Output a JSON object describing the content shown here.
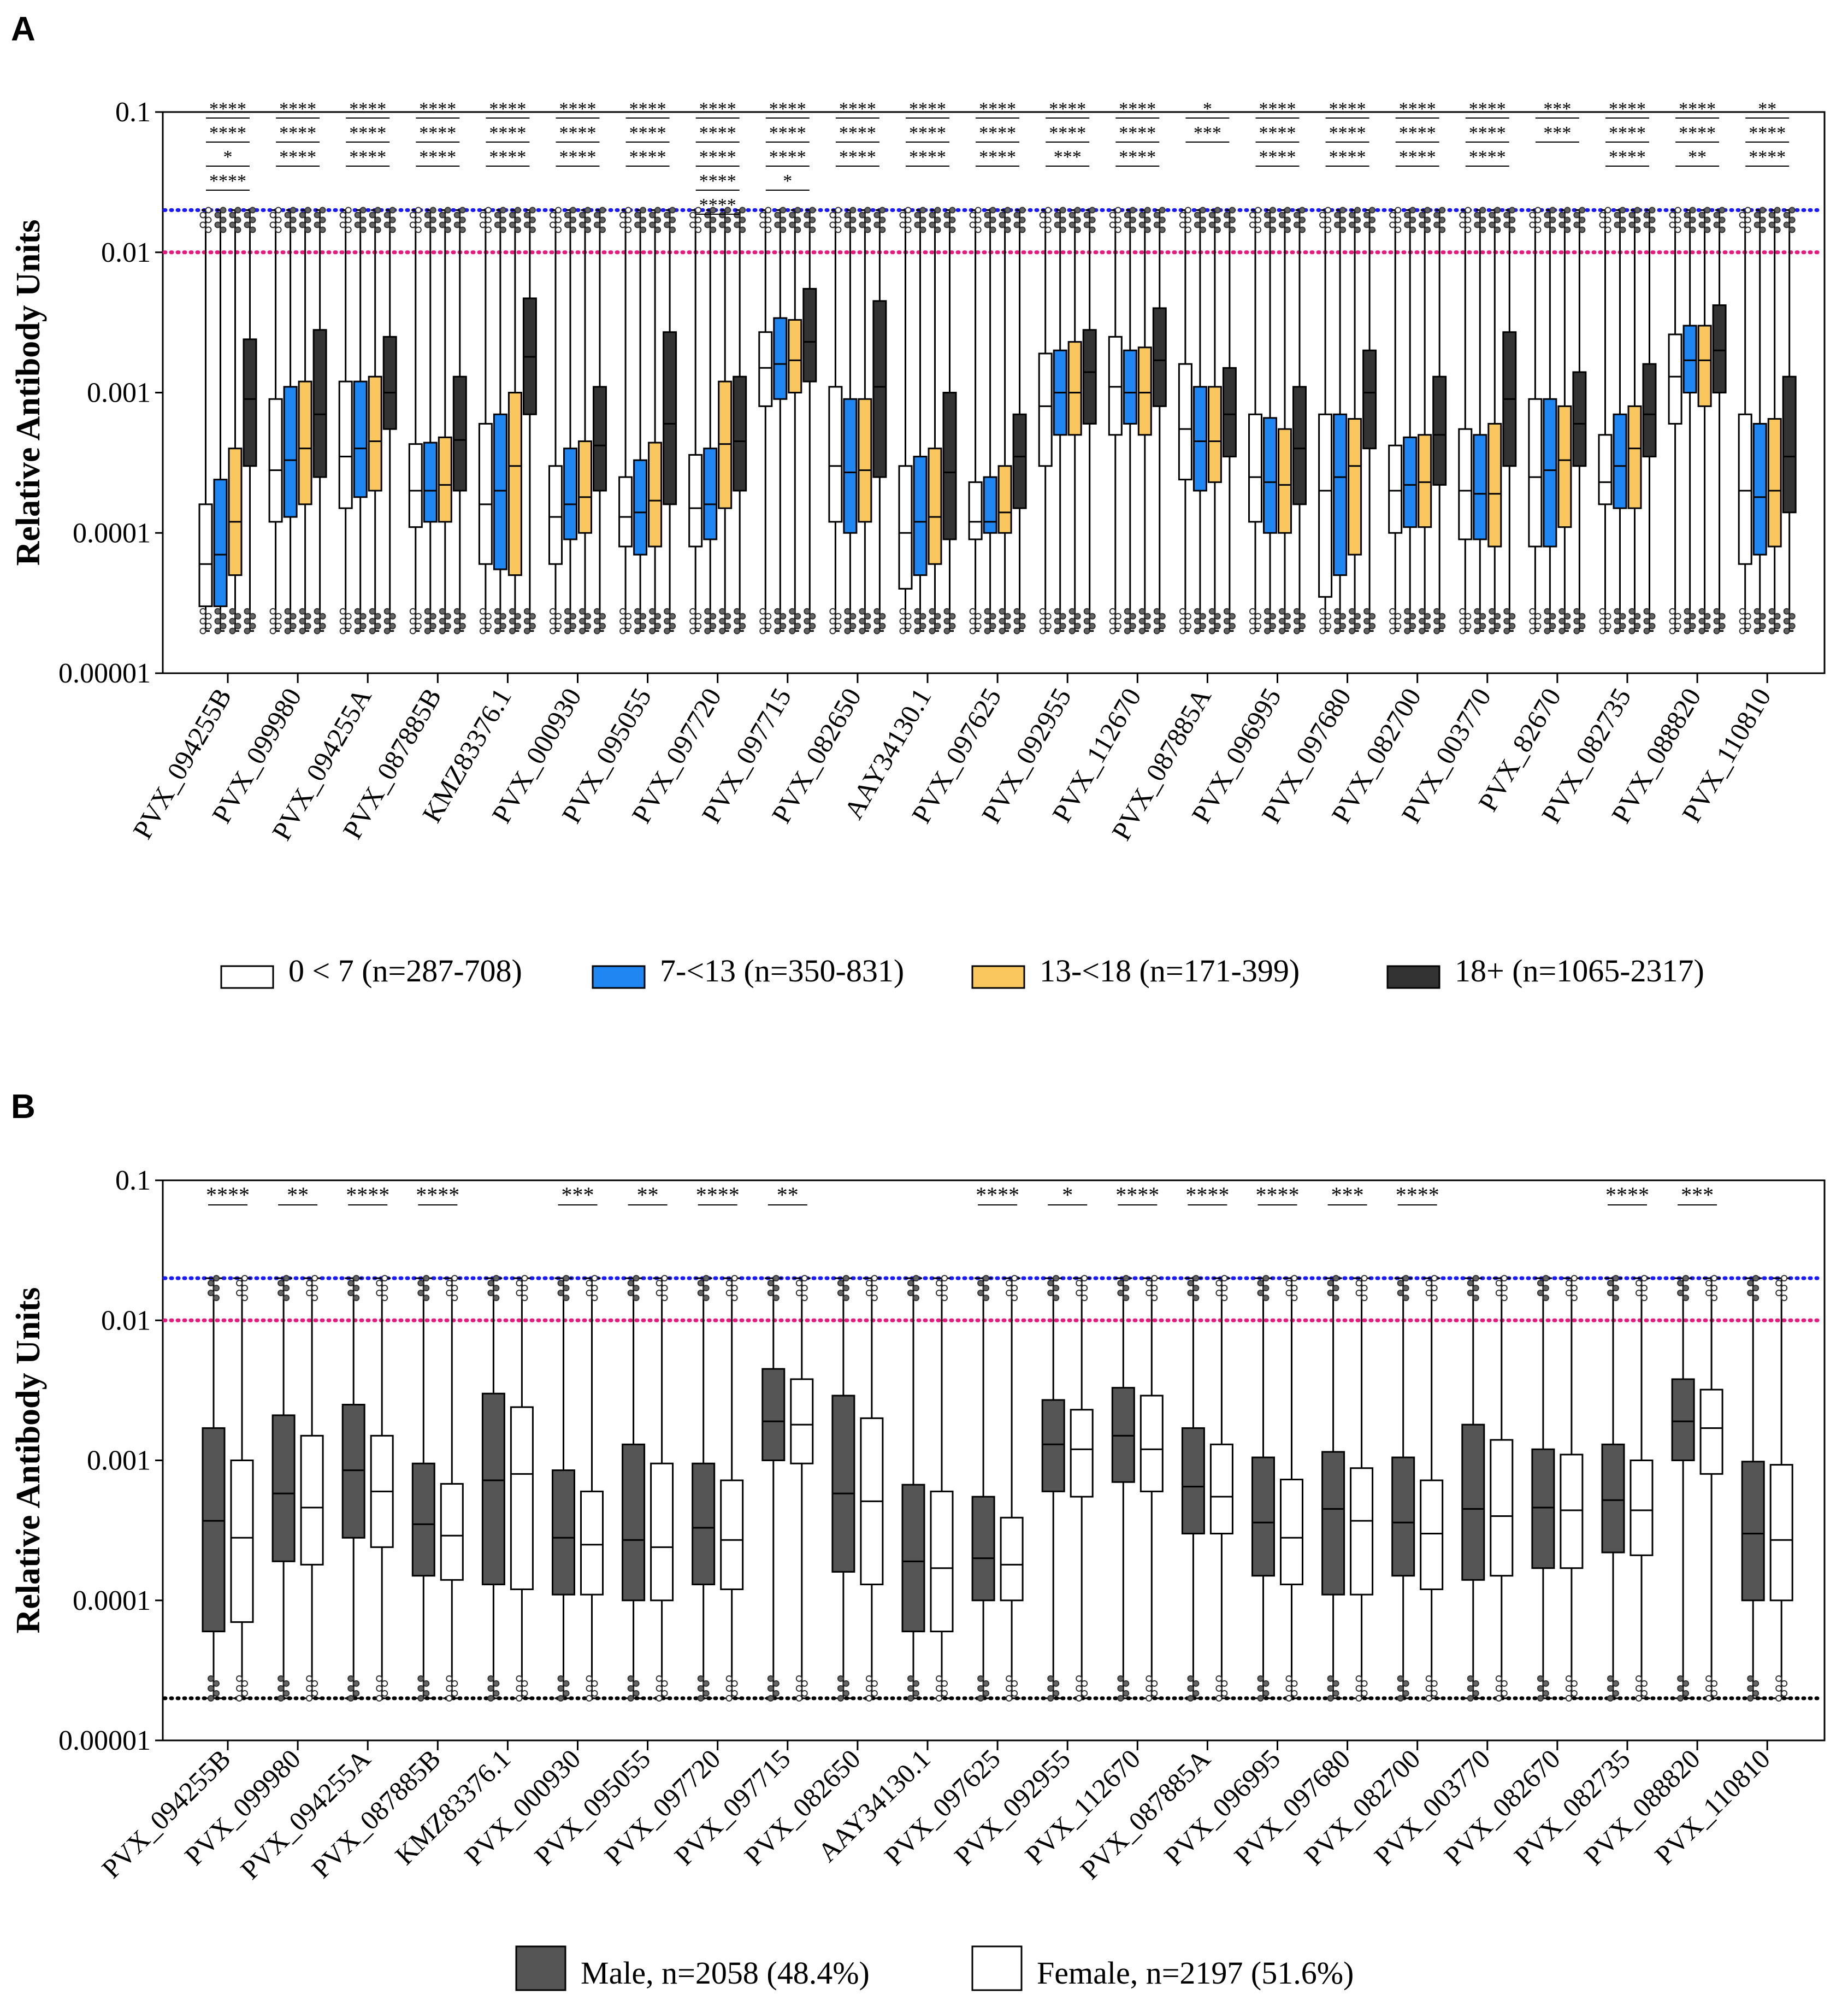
{
  "chart_data": [
    {
      "panel": "A",
      "type": "box",
      "scale": "log",
      "ylabel": "Relative Antibody Units",
      "ylim": [
        1e-05,
        0.1
      ],
      "yticks": [
        "0.1",
        "0.01",
        "0.001",
        "0.0001",
        "0.00001"
      ],
      "reference_lines": [
        {
          "value": 0.02,
          "color": "#1a1aff",
          "style": "dotted"
        },
        {
          "value": 0.01,
          "color": "#e6197e",
          "style": "dotted"
        }
      ],
      "categories": [
        "PVX_094255B",
        "PVX_099980",
        "PVX_094255A",
        "PVX_087885B",
        "KMZ83376.1",
        "PVX_000930",
        "PVX_095055",
        "PVX_097720",
        "PVX_097715",
        "PVX_082650",
        "AAY34130.1",
        "PVX_097625",
        "PVX_092955",
        "PVX_112670",
        "PVX_087885A",
        "PVX_096995",
        "PVX_097680",
        "PVX_082700",
        "PVX_003770",
        "PVX_82670",
        "PVX_082735",
        "PVX_088820",
        "PVX_110810"
      ],
      "legend": [
        {
          "label": "0 < 7 (n=287-708)",
          "color": "#ffffff"
        },
        {
          "label": "7-<13 (n=350-831)",
          "color": "#1f86f2"
        },
        {
          "label": "13-<18 (n=171-399)",
          "color": "#f9c75e"
        },
        {
          "label": "18+ (n=1065-2317)",
          "color": "#333333"
        }
      ],
      "series": [
        {
          "name": "0 < 7",
          "boxes": [
            [
              3e-05,
              6e-05,
              0.00016
            ],
            [
              0.00012,
              0.00028,
              0.0009
            ],
            [
              0.00015,
              0.00035,
              0.0012
            ],
            [
              0.00011,
              0.0002,
              0.00043
            ],
            [
              6e-05,
              0.00016,
              0.0006
            ],
            [
              6e-05,
              0.00013,
              0.0003
            ],
            [
              8e-05,
              0.00013,
              0.00025
            ],
            [
              8e-05,
              0.00015,
              0.00036
            ],
            [
              0.0008,
              0.0015,
              0.0027
            ],
            [
              0.00012,
              0.0003,
              0.0011
            ],
            [
              4e-05,
              0.0001,
              0.0003
            ],
            [
              9e-05,
              0.00012,
              0.00023
            ],
            [
              0.0003,
              0.0008,
              0.0019
            ],
            [
              0.0005,
              0.0011,
              0.0025
            ],
            [
              0.00024,
              0.00055,
              0.0016
            ],
            [
              0.00012,
              0.00025,
              0.0007
            ],
            [
              3.5e-05,
              0.0002,
              0.0007
            ],
            [
              0.0001,
              0.0002,
              0.00042
            ],
            [
              9e-05,
              0.0002,
              0.00055
            ],
            [
              8e-05,
              0.00025,
              0.0009
            ],
            [
              0.00016,
              0.00023,
              0.0005
            ],
            [
              0.0006,
              0.0013,
              0.0026
            ],
            [
              6e-05,
              0.0002,
              0.0007
            ]
          ]
        },
        {
          "name": "7-<13",
          "boxes": [
            [
              3e-05,
              7e-05,
              0.00024
            ],
            [
              0.00013,
              0.00033,
              0.0011
            ],
            [
              0.00018,
              0.0004,
              0.0012
            ],
            [
              0.00012,
              0.0002,
              0.00044
            ],
            [
              5.5e-05,
              0.0002,
              0.0007
            ],
            [
              9e-05,
              0.00016,
              0.0004
            ],
            [
              7e-05,
              0.00014,
              0.00033
            ],
            [
              9e-05,
              0.00016,
              0.0004
            ],
            [
              0.0009,
              0.0016,
              0.0034
            ],
            [
              0.0001,
              0.00027,
              0.0009
            ],
            [
              5e-05,
              0.00012,
              0.00035
            ],
            [
              0.0001,
              0.00012,
              0.00025
            ],
            [
              0.0005,
              0.001,
              0.002
            ],
            [
              0.0006,
              0.001,
              0.002
            ],
            [
              0.0002,
              0.00045,
              0.0011
            ],
            [
              0.0001,
              0.00023,
              0.00066
            ],
            [
              5e-05,
              0.00025,
              0.0007
            ],
            [
              0.00011,
              0.00022,
              0.00048
            ],
            [
              9e-05,
              0.00019,
              0.0005
            ],
            [
              8e-05,
              0.00028,
              0.0009
            ],
            [
              0.00015,
              0.0003,
              0.0007
            ],
            [
              0.001,
              0.0017,
              0.003
            ],
            [
              7e-05,
              0.00018,
              0.0006
            ]
          ]
        },
        {
          "name": "13-<18",
          "boxes": [
            [
              5e-05,
              0.00012,
              0.0004
            ],
            [
              0.00016,
              0.0004,
              0.0012
            ],
            [
              0.0002,
              0.00045,
              0.0013
            ],
            [
              0.00012,
              0.00022,
              0.00048
            ],
            [
              5e-05,
              0.0003,
              0.001
            ],
            [
              0.0001,
              0.00018,
              0.00045
            ],
            [
              8e-05,
              0.00017,
              0.00044
            ],
            [
              0.00015,
              0.00043,
              0.0012
            ],
            [
              0.001,
              0.0017,
              0.0033
            ],
            [
              0.00012,
              0.00028,
              0.0009
            ],
            [
              6e-05,
              0.00013,
              0.0004
            ],
            [
              0.0001,
              0.00014,
              0.0003
            ],
            [
              0.0005,
              0.001,
              0.0023
            ],
            [
              0.0005,
              0.001,
              0.0021
            ],
            [
              0.00023,
              0.00045,
              0.0011
            ],
            [
              0.0001,
              0.00022,
              0.00055
            ],
            [
              7e-05,
              0.0003,
              0.00065
            ],
            [
              0.00011,
              0.00023,
              0.0005
            ],
            [
              8e-05,
              0.00019,
              0.0006
            ],
            [
              0.00011,
              0.00033,
              0.0008
            ],
            [
              0.00015,
              0.0004,
              0.0008
            ],
            [
              0.0008,
              0.0017,
              0.003
            ],
            [
              8e-05,
              0.0002,
              0.00065
            ]
          ]
        },
        {
          "name": "18+",
          "boxes": [
            [
              0.0003,
              0.0009,
              0.0024
            ],
            [
              0.00025,
              0.0007,
              0.0028
            ],
            [
              0.00055,
              0.001,
              0.0025
            ],
            [
              0.0002,
              0.00046,
              0.0013
            ],
            [
              0.0007,
              0.0018,
              0.0047
            ],
            [
              0.0002,
              0.00042,
              0.0011
            ],
            [
              0.00016,
              0.0006,
              0.0027
            ],
            [
              0.0002,
              0.00045,
              0.0013
            ],
            [
              0.0012,
              0.0023,
              0.0055
            ],
            [
              0.00025,
              0.0011,
              0.0045
            ],
            [
              9e-05,
              0.00027,
              0.001
            ],
            [
              0.00015,
              0.00035,
              0.0007
            ],
            [
              0.0006,
              0.0014,
              0.0028
            ],
            [
              0.0008,
              0.0017,
              0.004
            ],
            [
              0.00035,
              0.0007,
              0.0015
            ],
            [
              0.00016,
              0.0004,
              0.0011
            ],
            [
              0.0004,
              0.001,
              0.002
            ],
            [
              0.00022,
              0.0005,
              0.0013
            ],
            [
              0.0003,
              0.0009,
              0.0027
            ],
            [
              0.0003,
              0.0006,
              0.0014
            ],
            [
              0.00035,
              0.0007,
              0.0016
            ],
            [
              0.001,
              0.002,
              0.0042
            ],
            [
              0.00014,
              0.00035,
              0.0013
            ]
          ]
        }
      ],
      "significance": [
        [
          "****",
          "****",
          "*",
          "****"
        ],
        [
          "****",
          "****",
          "****"
        ],
        [
          "****",
          "****",
          "****"
        ],
        [
          "****",
          "****",
          "****"
        ],
        [
          "****",
          "****",
          "****"
        ],
        [
          "****",
          "****",
          "****"
        ],
        [
          "****",
          "****",
          "****"
        ],
        [
          "****",
          "****",
          "****",
          "****",
          "****"
        ],
        [
          "****",
          "****",
          "****",
          "*"
        ],
        [
          "****",
          "****",
          "****"
        ],
        [
          "****",
          "****",
          "****"
        ],
        [
          "****",
          "****",
          "****"
        ],
        [
          "****",
          "****",
          "***"
        ],
        [
          "****",
          "****",
          "****"
        ],
        [
          "*",
          "***"
        ],
        [
          "****",
          "****",
          "****"
        ],
        [
          "****",
          "****",
          "****"
        ],
        [
          "****",
          "****",
          "****"
        ],
        [
          "****",
          "****",
          "****"
        ],
        [
          "***",
          "***"
        ],
        [
          "****",
          "****",
          "****"
        ],
        [
          "****",
          "****",
          "**"
        ],
        [
          "**",
          "****",
          "****"
        ]
      ]
    },
    {
      "panel": "B",
      "type": "box",
      "scale": "log",
      "ylabel": "Relative Antibody Units",
      "ylim": [
        1e-05,
        0.1
      ],
      "yticks": [
        "0.1",
        "0.01",
        "0.001",
        "0.0001",
        "0.00001"
      ],
      "reference_lines": [
        {
          "value": 0.02,
          "color": "#1a1aff",
          "style": "dotted"
        },
        {
          "value": 0.01,
          "color": "#e6197e",
          "style": "dotted"
        },
        {
          "value": 2e-05,
          "color": "#000000",
          "style": "dotted"
        }
      ],
      "categories": [
        "PVX_094255B",
        "PVX_099980",
        "PVX_094255A",
        "PVX_087885B",
        "KMZ83376.1",
        "PVX_000930",
        "PVX_095055",
        "PVX_097720",
        "PVX_097715",
        "PVX_082650",
        "AAY34130.1",
        "PVX_097625",
        "PVX_092955",
        "PVX_112670",
        "PVX_087885A",
        "PVX_096995",
        "PVX_097680",
        "PVX_082700",
        "PVX_003770",
        "PVX_082670",
        "PVX_082735",
        "PVX_088820",
        "PVX_110810"
      ],
      "legend": [
        {
          "label": "Male, n=2058 (48.4%)",
          "color": "#555555"
        },
        {
          "label": "Female, n=2197 (51.6%)",
          "color": "#ffffff"
        }
      ],
      "series": [
        {
          "name": "Male",
          "boxes": [
            [
              6e-05,
              0.00037,
              0.0017
            ],
            [
              0.00019,
              0.00058,
              0.0021
            ],
            [
              0.00028,
              0.00085,
              0.0025
            ],
            [
              0.00015,
              0.00035,
              0.00095
            ],
            [
              0.00013,
              0.00072,
              0.003
            ],
            [
              0.00011,
              0.00028,
              0.00085
            ],
            [
              0.0001,
              0.00027,
              0.0013
            ],
            [
              0.00013,
              0.00033,
              0.00095
            ],
            [
              0.001,
              0.0019,
              0.0045
            ],
            [
              0.00016,
              0.00058,
              0.0029
            ],
            [
              6e-05,
              0.00019,
              0.00067
            ],
            [
              0.0001,
              0.0002,
              0.00055
            ],
            [
              0.0006,
              0.0013,
              0.0027
            ],
            [
              0.0007,
              0.0015,
              0.0033
            ],
            [
              0.0003,
              0.00065,
              0.0017
            ],
            [
              0.00015,
              0.00036,
              0.00105
            ],
            [
              0.00011,
              0.00045,
              0.00115
            ],
            [
              0.00015,
              0.00036,
              0.00105
            ],
            [
              0.00014,
              0.00045,
              0.0018
            ],
            [
              0.00017,
              0.00046,
              0.0012
            ],
            [
              0.00022,
              0.00052,
              0.0013
            ],
            [
              0.001,
              0.0019,
              0.0038
            ],
            [
              0.0001,
              0.0003,
              0.00098
            ]
          ]
        },
        {
          "name": "Female",
          "boxes": [
            [
              7e-05,
              0.00028,
              0.001
            ],
            [
              0.00018,
              0.00046,
              0.0015
            ],
            [
              0.00024,
              0.0006,
              0.0015
            ],
            [
              0.00014,
              0.00029,
              0.00068
            ],
            [
              0.00012,
              0.0008,
              0.0024
            ],
            [
              0.00011,
              0.00025,
              0.0006
            ],
            [
              0.0001,
              0.00024,
              0.00095
            ],
            [
              0.00012,
              0.00027,
              0.00072
            ],
            [
              0.00095,
              0.0018,
              0.0038
            ],
            [
              0.00013,
              0.00051,
              0.002
            ],
            [
              6e-05,
              0.00017,
              0.0006
            ],
            [
              0.0001,
              0.00018,
              0.00039
            ],
            [
              0.00055,
              0.0012,
              0.0023
            ],
            [
              0.0006,
              0.0012,
              0.0029
            ],
            [
              0.0003,
              0.00055,
              0.0013
            ],
            [
              0.00013,
              0.00028,
              0.00073
            ],
            [
              0.00011,
              0.00037,
              0.00088
            ],
            [
              0.00012,
              0.0003,
              0.00072
            ],
            [
              0.00015,
              0.0004,
              0.0014
            ],
            [
              0.00017,
              0.00044,
              0.0011
            ],
            [
              0.00021,
              0.00044,
              0.001
            ],
            [
              0.0008,
              0.0017,
              0.0032
            ],
            [
              0.0001,
              0.00027,
              0.00093
            ]
          ]
        }
      ],
      "significance": [
        "****",
        "**",
        "****",
        "****",
        "",
        "***",
        "**",
        "****",
        "**",
        "",
        "",
        "****",
        "*",
        "****",
        "****",
        "****",
        "***",
        "****",
        "",
        "",
        "****",
        "***",
        ""
      ]
    }
  ]
}
